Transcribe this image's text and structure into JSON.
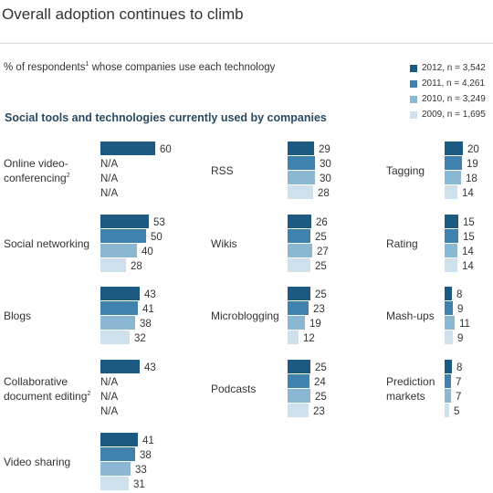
{
  "title": "Overall adoption continues to climb",
  "subtitle_text": "% of respondents",
  "subtitle_note": "1",
  "subtitle_rest": " whose companies use each technology",
  "section_title": "Social tools and technologies currently used by companies",
  "colors": [
    "#1c5a82",
    "#3e82ad",
    "#8ab8d2",
    "#cde0ec"
  ],
  "legend": [
    {
      "label": "2012, n = 3,542"
    },
    {
      "label": "2011, n = 4,261"
    },
    {
      "label": "2010, n = 3,249"
    },
    {
      "label": "2009, n = 1,695"
    }
  ],
  "chart_data": {
    "type": "bar",
    "orientation": "horizontal",
    "series_names": [
      "2012, n = 3,542",
      "2011, n = 4,261",
      "2010, n = 3,249",
      "2009, n = 1,695"
    ],
    "categories": [
      {
        "name": "Online video-conferencing",
        "label_lines": [
          "Online video-",
          "conferencing"
        ],
        "note": "2",
        "values": [
          60,
          "N/A",
          "N/A",
          "N/A"
        ]
      },
      {
        "name": "Social networking",
        "label_lines": [
          "Social networking"
        ],
        "values": [
          53,
          50,
          40,
          28
        ]
      },
      {
        "name": "Blogs",
        "label_lines": [
          "Blogs"
        ],
        "values": [
          43,
          41,
          38,
          32
        ]
      },
      {
        "name": "Collaborative document editing",
        "label_lines": [
          "Collaborative",
          "document editing"
        ],
        "note": "2",
        "values": [
          43,
          "N/A",
          "N/A",
          "N/A"
        ]
      },
      {
        "name": "Video sharing",
        "label_lines": [
          "Video sharing"
        ],
        "values": [
          41,
          38,
          33,
          31
        ]
      },
      {
        "name": "RSS",
        "label_lines": [
          "RSS"
        ],
        "values": [
          29,
          30,
          30,
          28
        ]
      },
      {
        "name": "Wikis",
        "label_lines": [
          "Wikis"
        ],
        "values": [
          26,
          25,
          27,
          25
        ]
      },
      {
        "name": "Microblogging",
        "label_lines": [
          "Microblogging"
        ],
        "values": [
          25,
          23,
          19,
          12
        ]
      },
      {
        "name": "Podcasts",
        "label_lines": [
          "Podcasts"
        ],
        "values": [
          25,
          24,
          25,
          23
        ]
      },
      {
        "name": "Tagging",
        "label_lines": [
          "Tagging"
        ],
        "values": [
          20,
          19,
          18,
          14
        ]
      },
      {
        "name": "Rating",
        "label_lines": [
          "Rating"
        ],
        "values": [
          15,
          15,
          14,
          14
        ]
      },
      {
        "name": "Mash-ups",
        "label_lines": [
          "Mash-ups"
        ],
        "values": [
          8,
          9,
          11,
          9
        ]
      },
      {
        "name": "Prediction markets",
        "label_lines": [
          "Prediction",
          "markets"
        ],
        "values": [
          8,
          7,
          7,
          5
        ]
      }
    ]
  }
}
